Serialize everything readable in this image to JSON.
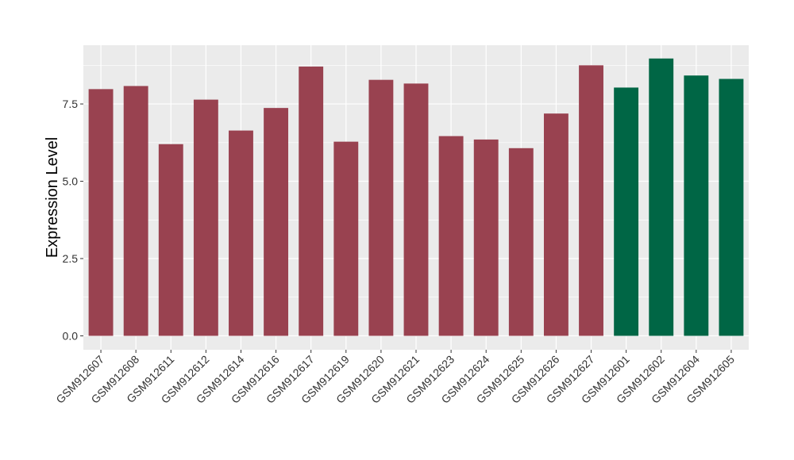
{
  "chart_data": {
    "type": "bar",
    "ylabel": "Expression Level",
    "xlabel": "",
    "ylim": [
      -0.45,
      9.4
    ],
    "yticks": [
      0.0,
      2.5,
      5.0,
      7.5
    ],
    "ytick_labels": [
      "0.0",
      "2.5",
      "5.0",
      "7.5"
    ],
    "grid": true,
    "panel_background": "#ebebeb",
    "grid_color": "#ffffff",
    "categories": [
      "GSM912607",
      "GSM912608",
      "GSM912611",
      "GSM912612",
      "GSM912614",
      "GSM912616",
      "GSM912617",
      "GSM912619",
      "GSM912620",
      "GSM912621",
      "GSM912623",
      "GSM912624",
      "GSM912625",
      "GSM912626",
      "GSM912627",
      "GSM912601",
      "GSM912602",
      "GSM912604",
      "GSM912605"
    ],
    "values": [
      7.98,
      8.08,
      6.2,
      7.64,
      6.64,
      7.37,
      8.71,
      6.28,
      8.28,
      8.16,
      6.46,
      6.35,
      6.07,
      7.19,
      8.75,
      8.03,
      8.97,
      8.42,
      8.31
    ],
    "colors": [
      "#994250",
      "#994250",
      "#994250",
      "#994250",
      "#994250",
      "#994250",
      "#994250",
      "#994250",
      "#994250",
      "#994250",
      "#994250",
      "#994250",
      "#994250",
      "#994250",
      "#994250",
      "#006645",
      "#006645",
      "#006645",
      "#006645"
    ]
  }
}
